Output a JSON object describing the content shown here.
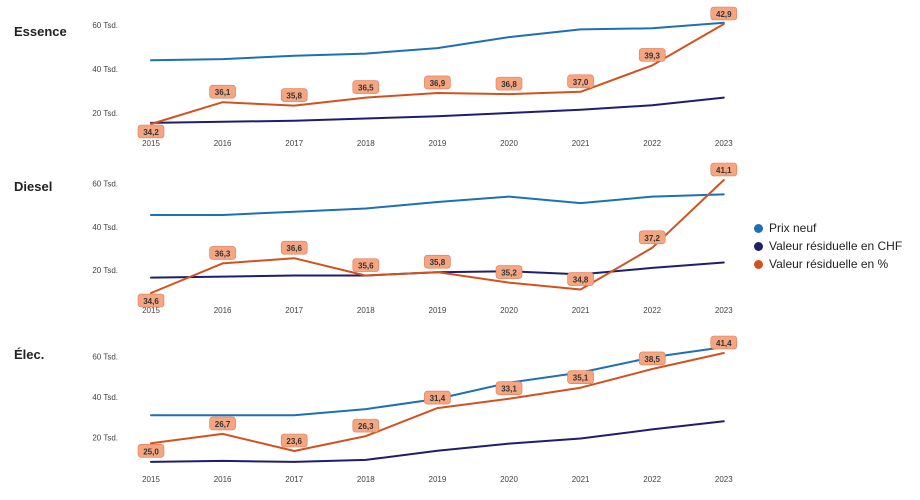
{
  "legend": [
    {
      "label": "Prix neuf",
      "color": "#1f6fb5"
    },
    {
      "label": "Valeur résiduelle en CHF",
      "color": "#1e1e6e"
    },
    {
      "label": "Valeur résiduelle en %",
      "color": "#d2521f"
    }
  ],
  "chart_data": [
    {
      "type": "line",
      "title": "Essence",
      "x": [
        "2015",
        "2016",
        "2017",
        "2018",
        "2019",
        "2020",
        "2021",
        "2022",
        "2023"
      ],
      "y_ticks": [
        "20 Tsd.",
        "40 Tsd.",
        "60 Tsd."
      ],
      "ylim": [
        10,
        65
      ],
      "series": [
        {
          "name": "Prix neuf",
          "color": "#1f6fb5",
          "values": [
            44,
            44.5,
            46,
            47,
            49.5,
            54.5,
            58,
            58.5,
            61
          ]
        },
        {
          "name": "Valeur résiduelle en CHF",
          "color": "#1e1e6e",
          "values": [
            15.5,
            16,
            16.5,
            17.5,
            18.5,
            20,
            21.5,
            23.5,
            27
          ]
        },
        {
          "name": "Valeur résiduelle en %",
          "color": "#d2521f",
          "values": [
            34.2,
            36.1,
            35.8,
            36.5,
            36.9,
            36.8,
            37.0,
            39.3,
            42.9
          ],
          "labels": [
            "34,2",
            "36,1",
            "35,8",
            "36,5",
            "36,9",
            "36,8",
            "37,0",
            "39,3",
            "42,9"
          ]
        }
      ]
    },
    {
      "type": "line",
      "title": "Diesel",
      "x": [
        "2015",
        "2016",
        "2017",
        "2018",
        "2019",
        "2020",
        "2021",
        "2022",
        "2023"
      ],
      "y_ticks": [
        "20 Tsd.",
        "40 Tsd.",
        "60 Tsd."
      ],
      "ylim": [
        8,
        64
      ],
      "series": [
        {
          "name": "Prix neuf",
          "color": "#1f6fb5",
          "values": [
            45.5,
            45.5,
            47,
            48.5,
            51.5,
            54,
            51,
            54,
            55
          ]
        },
        {
          "name": "Valeur résiduelle en CHF",
          "color": "#1e1e6e",
          "values": [
            16.5,
            17,
            17.5,
            17.5,
            19,
            19.5,
            18,
            21,
            23.5
          ]
        },
        {
          "name": "Valeur résiduelle en %",
          "color": "#d2521f",
          "values": [
            34.6,
            36.3,
            36.6,
            35.6,
            35.8,
            35.2,
            34.8,
            37.2,
            41.1
          ],
          "labels": [
            "34,6",
            "36,3",
            "36,6",
            "35,6",
            "35,8",
            "35,2",
            "34,8",
            "37,2",
            "41,1"
          ]
        }
      ]
    },
    {
      "type": "line",
      "title": "Élec.",
      "x": [
        "2015",
        "2016",
        "2017",
        "2018",
        "2019",
        "2020",
        "2021",
        "2022",
        "2023"
      ],
      "y_ticks": [
        "20 Tsd.",
        "40 Tsd.",
        "60 Tsd."
      ],
      "ylim": [
        5,
        68
      ],
      "series": [
        {
          "name": "Prix neuf",
          "color": "#1f6fb5",
          "values": [
            31,
            31,
            31,
            34,
            39,
            47,
            52,
            59.5,
            64.5
          ]
        },
        {
          "name": "Valeur résiduelle en CHF",
          "color": "#1e1e6e",
          "values": [
            8,
            8.5,
            8,
            9,
            13.5,
            17,
            19.5,
            24,
            28
          ]
        },
        {
          "name": "Valeur résiduelle en %",
          "color": "#d2521f",
          "values": [
            25.0,
            26.7,
            23.6,
            26.3,
            31.4,
            33.1,
            35.1,
            38.5,
            41.4
          ],
          "labels": [
            "25,0",
            "26,7",
            "23,6",
            "26,3",
            "31,4",
            "33,1",
            "35,1",
            "38,5",
            "41,4"
          ]
        }
      ]
    }
  ]
}
